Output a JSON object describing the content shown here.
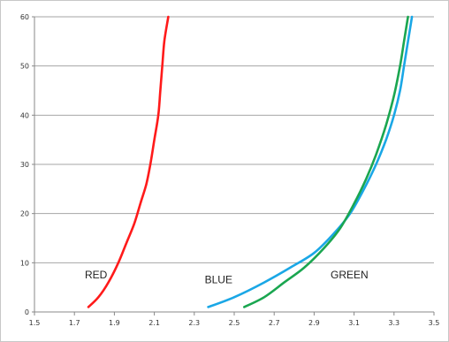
{
  "chart_data": {
    "type": "line",
    "title": "",
    "xlabel": "",
    "ylabel": "",
    "xlim": [
      1.5,
      3.5
    ],
    "ylim": [
      0,
      60
    ],
    "grid": "horizontal",
    "legend": "none",
    "x_ticks": [
      "1.5",
      "1.7",
      "1.9",
      "2.1",
      "2.3",
      "2.5",
      "2.7",
      "2.9",
      "3.1",
      "3.3",
      "3.5"
    ],
    "y_ticks": [
      "0",
      "10",
      "20",
      "30",
      "40",
      "50",
      "60"
    ],
    "series": [
      {
        "name": "RED",
        "color": "#ff1a1a",
        "points": [
          [
            1.77,
            1
          ],
          [
            1.82,
            3
          ],
          [
            1.87,
            6
          ],
          [
            1.92,
            10
          ],
          [
            1.96,
            14
          ],
          [
            2.0,
            18
          ],
          [
            2.03,
            22
          ],
          [
            2.06,
            26
          ],
          [
            2.08,
            30
          ],
          [
            2.1,
            35
          ],
          [
            2.12,
            40
          ],
          [
            2.13,
            45
          ],
          [
            2.14,
            50
          ],
          [
            2.15,
            55
          ],
          [
            2.17,
            60
          ]
        ]
      },
      {
        "name": "BLUE",
        "color": "#1aa7e6",
        "points": [
          [
            2.37,
            1
          ],
          [
            2.5,
            3
          ],
          [
            2.65,
            6
          ],
          [
            2.78,
            9
          ],
          [
            2.9,
            12
          ],
          [
            3.0,
            16
          ],
          [
            3.08,
            20
          ],
          [
            3.15,
            25
          ],
          [
            3.21,
            30
          ],
          [
            3.26,
            35
          ],
          [
            3.3,
            40
          ],
          [
            3.33,
            45
          ],
          [
            3.35,
            50
          ],
          [
            3.37,
            55
          ],
          [
            3.39,
            60
          ]
        ]
      },
      {
        "name": "GREEN",
        "color": "#1aa650",
        "points": [
          [
            2.55,
            1
          ],
          [
            2.65,
            3
          ],
          [
            2.75,
            6
          ],
          [
            2.85,
            9
          ],
          [
            2.95,
            13
          ],
          [
            3.03,
            17
          ],
          [
            3.1,
            22
          ],
          [
            3.16,
            27
          ],
          [
            3.21,
            32
          ],
          [
            3.26,
            38
          ],
          [
            3.3,
            44
          ],
          [
            3.33,
            50
          ],
          [
            3.35,
            55
          ],
          [
            3.37,
            60
          ]
        ]
      }
    ],
    "annotations": [
      {
        "text": "RED",
        "x": 1.77,
        "y": 5
      },
      {
        "text": "BLUE",
        "x": 2.37,
        "y": 4
      },
      {
        "text": "GREEN",
        "x": 3.0,
        "y": 5
      }
    ]
  }
}
